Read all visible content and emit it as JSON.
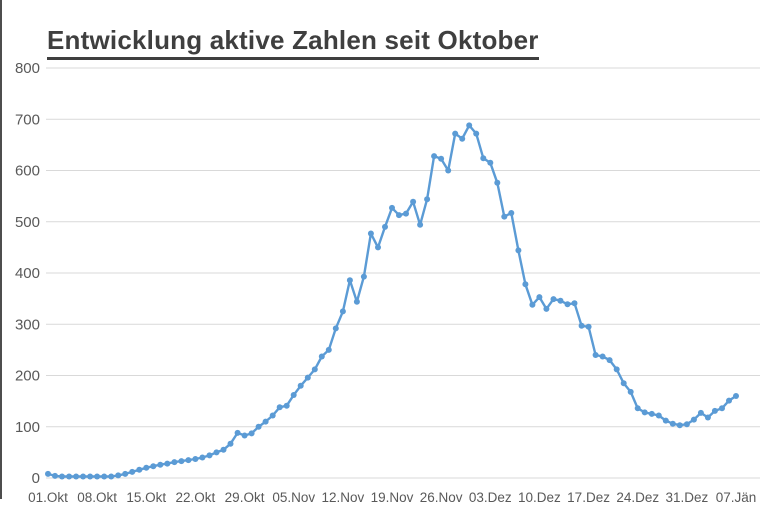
{
  "header": {
    "title": "Entwicklung aktive Zahlen seit Oktober"
  },
  "style": {
    "line_color": "#5b9bd5",
    "marker_color": "#5b9bd5",
    "grid_color": "#d9d9d9",
    "title_color": "#3f3f3f",
    "axis_label_color": "#595959",
    "background": "#ffffff",
    "left_border_color": "#4d4d4d"
  },
  "chart_data": {
    "type": "line",
    "title": "Entwicklung aktive Zahlen seit Oktober",
    "xlabel": "",
    "ylabel": "",
    "ylim": [
      0,
      800
    ],
    "y_ticks": [
      0,
      100,
      200,
      300,
      400,
      500,
      600,
      700,
      800
    ],
    "grid": "horizontal",
    "legend": "none",
    "x_tick_labels": [
      "01.Okt",
      "08.Okt",
      "15.Okt",
      "22.Okt",
      "29.Okt",
      "05.Nov",
      "12.Nov",
      "19.Nov",
      "26.Nov",
      "03.Dez",
      "10.Dez",
      "17.Dez",
      "24.Dez",
      "31.Dez",
      "07.Jän"
    ],
    "x_tick_interval_days": 7,
    "x_start_label": "01.Okt",
    "x_end_label": "07.Jän",
    "series": [
      {
        "name": "aktive Zahlen",
        "marker": "circle",
        "color": "#5b9bd5",
        "values": [
          8,
          4,
          3,
          3,
          3,
          3,
          3,
          3,
          3,
          3,
          5,
          8,
          12,
          16,
          20,
          23,
          26,
          28,
          31,
          33,
          35,
          37,
          40,
          44,
          50,
          55,
          67,
          88,
          83,
          87,
          100,
          110,
          122,
          138,
          141,
          162,
          180,
          196,
          212,
          237,
          250,
          292,
          325,
          386,
          344,
          393,
          477,
          450,
          490,
          527,
          513,
          516,
          539,
          494,
          544,
          628,
          623,
          600,
          672,
          662,
          688,
          672,
          624,
          615,
          576,
          510,
          517,
          444,
          378,
          338,
          353,
          330,
          349,
          346,
          339,
          341,
          297,
          295,
          240,
          237,
          230,
          212,
          185,
          168,
          136,
          128,
          125,
          122,
          112,
          106,
          103,
          105,
          114,
          127,
          118,
          131,
          136,
          151,
          160
        ]
      }
    ]
  }
}
